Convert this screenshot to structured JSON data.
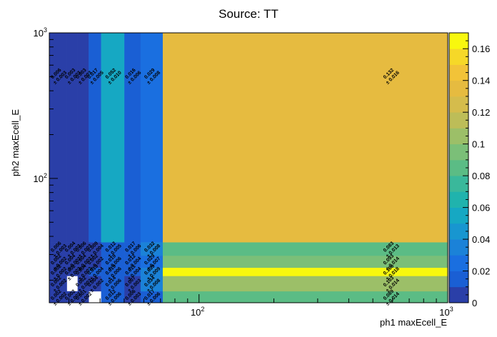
{
  "chart_data": {
    "type": "heatmap",
    "title": "Source: TT",
    "xlabel": "ph1 maxEcell_E",
    "ylabel": "ph2 maxEcell_E",
    "x_scale": "log",
    "y_scale": "log",
    "xlim": [
      25,
      1000
    ],
    "ylim": [
      14,
      1000
    ],
    "x_ticks": [
      {
        "base": "10",
        "exp": "2",
        "value": 100
      },
      {
        "base": "10",
        "exp": "3",
        "value": 1000
      }
    ],
    "y_ticks": [
      {
        "base": "10",
        "exp": "2",
        "value": 100
      },
      {
        "base": "10",
        "exp": "3",
        "value": 1000
      }
    ],
    "x_edges": [
      25,
      29.4,
      32.5,
      36,
      40.4,
      50.1,
      58.2,
      71.5,
      1000
    ],
    "y_edges": [
      14,
      16.8,
      21.4,
      24.4,
      29.5,
      36.5,
      1000
    ],
    "cells": [
      {
        "i": 0,
        "j": 0,
        "v": 0.002,
        "e": 0.002
      },
      {
        "i": 1,
        "j": 0,
        "v": 0.002,
        "e": 0.002
      },
      {
        "i": 2,
        "j": 0,
        "v": 0.001,
        "e": 0.002
      },
      {
        "i": 4,
        "j": 0,
        "v": 0.012,
        "e": 0.006
      },
      {
        "i": 5,
        "j": 0,
        "v": 0.006,
        "e": 0.003
      },
      {
        "i": 6,
        "j": 0,
        "v": 0.017,
        "e": 0.006
      },
      {
        "i": 7,
        "j": 0,
        "v": 0.089,
        "e": 0.014
      },
      {
        "i": 0,
        "j": 1,
        "v": 0.002,
        "e": 0.002
      },
      {
        "i": 2,
        "j": 1,
        "v": 0.002,
        "e": 0.002
      },
      {
        "i": 3,
        "j": 1,
        "v": 0.004,
        "e": 0.002
      },
      {
        "i": 4,
        "j": 1,
        "v": 0.014,
        "e": 0.006
      },
      {
        "i": 5,
        "j": 1,
        "v": 0.007,
        "e": 0.003
      },
      {
        "i": 6,
        "j": 1,
        "v": 0.034,
        "e": 0.008
      },
      {
        "i": 7,
        "j": 1,
        "v": 0.103,
        "e": 0.014
      },
      {
        "i": 0,
        "j": 2,
        "v": 0.002,
        "e": 0.002
      },
      {
        "i": 1,
        "j": 2,
        "v": 0.002,
        "e": 0.002
      },
      {
        "i": 2,
        "j": 2,
        "v": 0.004,
        "e": 0.002
      },
      {
        "i": 3,
        "j": 2,
        "v": 0.013,
        "e": 0.004
      },
      {
        "i": 4,
        "j": 2,
        "v": 0.019,
        "e": 0.006
      },
      {
        "i": 5,
        "j": 2,
        "v": 0.011,
        "e": 0.004
      },
      {
        "i": 6,
        "j": 2,
        "v": 0.039,
        "e": 0.009
      },
      {
        "i": 7,
        "j": 2,
        "v": 0.166,
        "e": 0.018
      },
      {
        "i": 0,
        "j": 3,
        "v": 0.002,
        "e": 0.002
      },
      {
        "i": 1,
        "j": 3,
        "v": 0.004,
        "e": 0.002
      },
      {
        "i": 2,
        "j": 3,
        "v": 0.004,
        "e": 0.002
      },
      {
        "i": 3,
        "j": 3,
        "v": 0.002,
        "e": 0.002
      },
      {
        "i": 4,
        "j": 3,
        "v": 0.019,
        "e": 0.006
      },
      {
        "i": 5,
        "j": 3,
        "v": 0.012,
        "e": 0.004
      },
      {
        "i": 6,
        "j": 3,
        "v": 0.029,
        "e": 0.007
      },
      {
        "i": 7,
        "j": 3,
        "v": 0.093,
        "e": 0.014
      },
      {
        "i": 0,
        "j": 4,
        "v": 0.006,
        "e": 0.003
      },
      {
        "i": 1,
        "j": 4,
        "v": 0.004,
        "e": 0.003
      },
      {
        "i": 2,
        "j": 4,
        "v": 0.006,
        "e": 0.003
      },
      {
        "i": 3,
        "j": 4,
        "v": 0.009,
        "e": 0.004
      },
      {
        "i": 4,
        "j": 4,
        "v": 0.012,
        "e": 0.005
      },
      {
        "i": 5,
        "j": 4,
        "v": 0.017,
        "e": 0.006
      },
      {
        "i": 6,
        "j": 4,
        "v": 0.032,
        "e": 0.008
      },
      {
        "i": 7,
        "j": 4,
        "v": 0.083,
        "e": 0.013
      },
      {
        "i": 0,
        "j": 5,
        "v": 0.006,
        "e": 0.003
      },
      {
        "i": 1,
        "j": 5,
        "v": 0.003,
        "e": 0.003
      },
      {
        "i": 2,
        "j": 5,
        "v": 0.003,
        "e": 0.003
      },
      {
        "i": 3,
        "j": 5,
        "v": 0.017,
        "e": 0.005
      },
      {
        "i": 4,
        "j": 5,
        "v": 0.052,
        "e": 0.01
      },
      {
        "i": 5,
        "j": 5,
        "v": 0.016,
        "e": 0.006
      },
      {
        "i": 6,
        "j": 5,
        "v": 0.029,
        "e": 0.008
      },
      {
        "i": 7,
        "j": 5,
        "v": 0.132,
        "e": 0.016
      }
    ],
    "colorbar": {
      "range": [
        0,
        0.17
      ],
      "ticks": [
        "0",
        "0.02",
        "0.04",
        "0.06",
        "0.08",
        "0.1",
        "0.12",
        "0.14",
        "0.16"
      ],
      "tick_values": [
        0,
        0.02,
        0.04,
        0.06,
        0.08,
        0.1,
        0.12,
        0.14,
        0.16
      ],
      "colors": [
        "#2a3fa8",
        "#1a5fd4",
        "#1a6fe0",
        "#1b82d8",
        "#1896d0",
        "#16a8c3",
        "#20b3ad",
        "#3ab89b",
        "#5bbc85",
        "#7bbf78",
        "#9cbf68",
        "#bdbd58",
        "#d5bc4c",
        "#e6bb40",
        "#f2c338",
        "#f6d828",
        "#f8f80e"
      ]
    },
    "grid": false
  }
}
